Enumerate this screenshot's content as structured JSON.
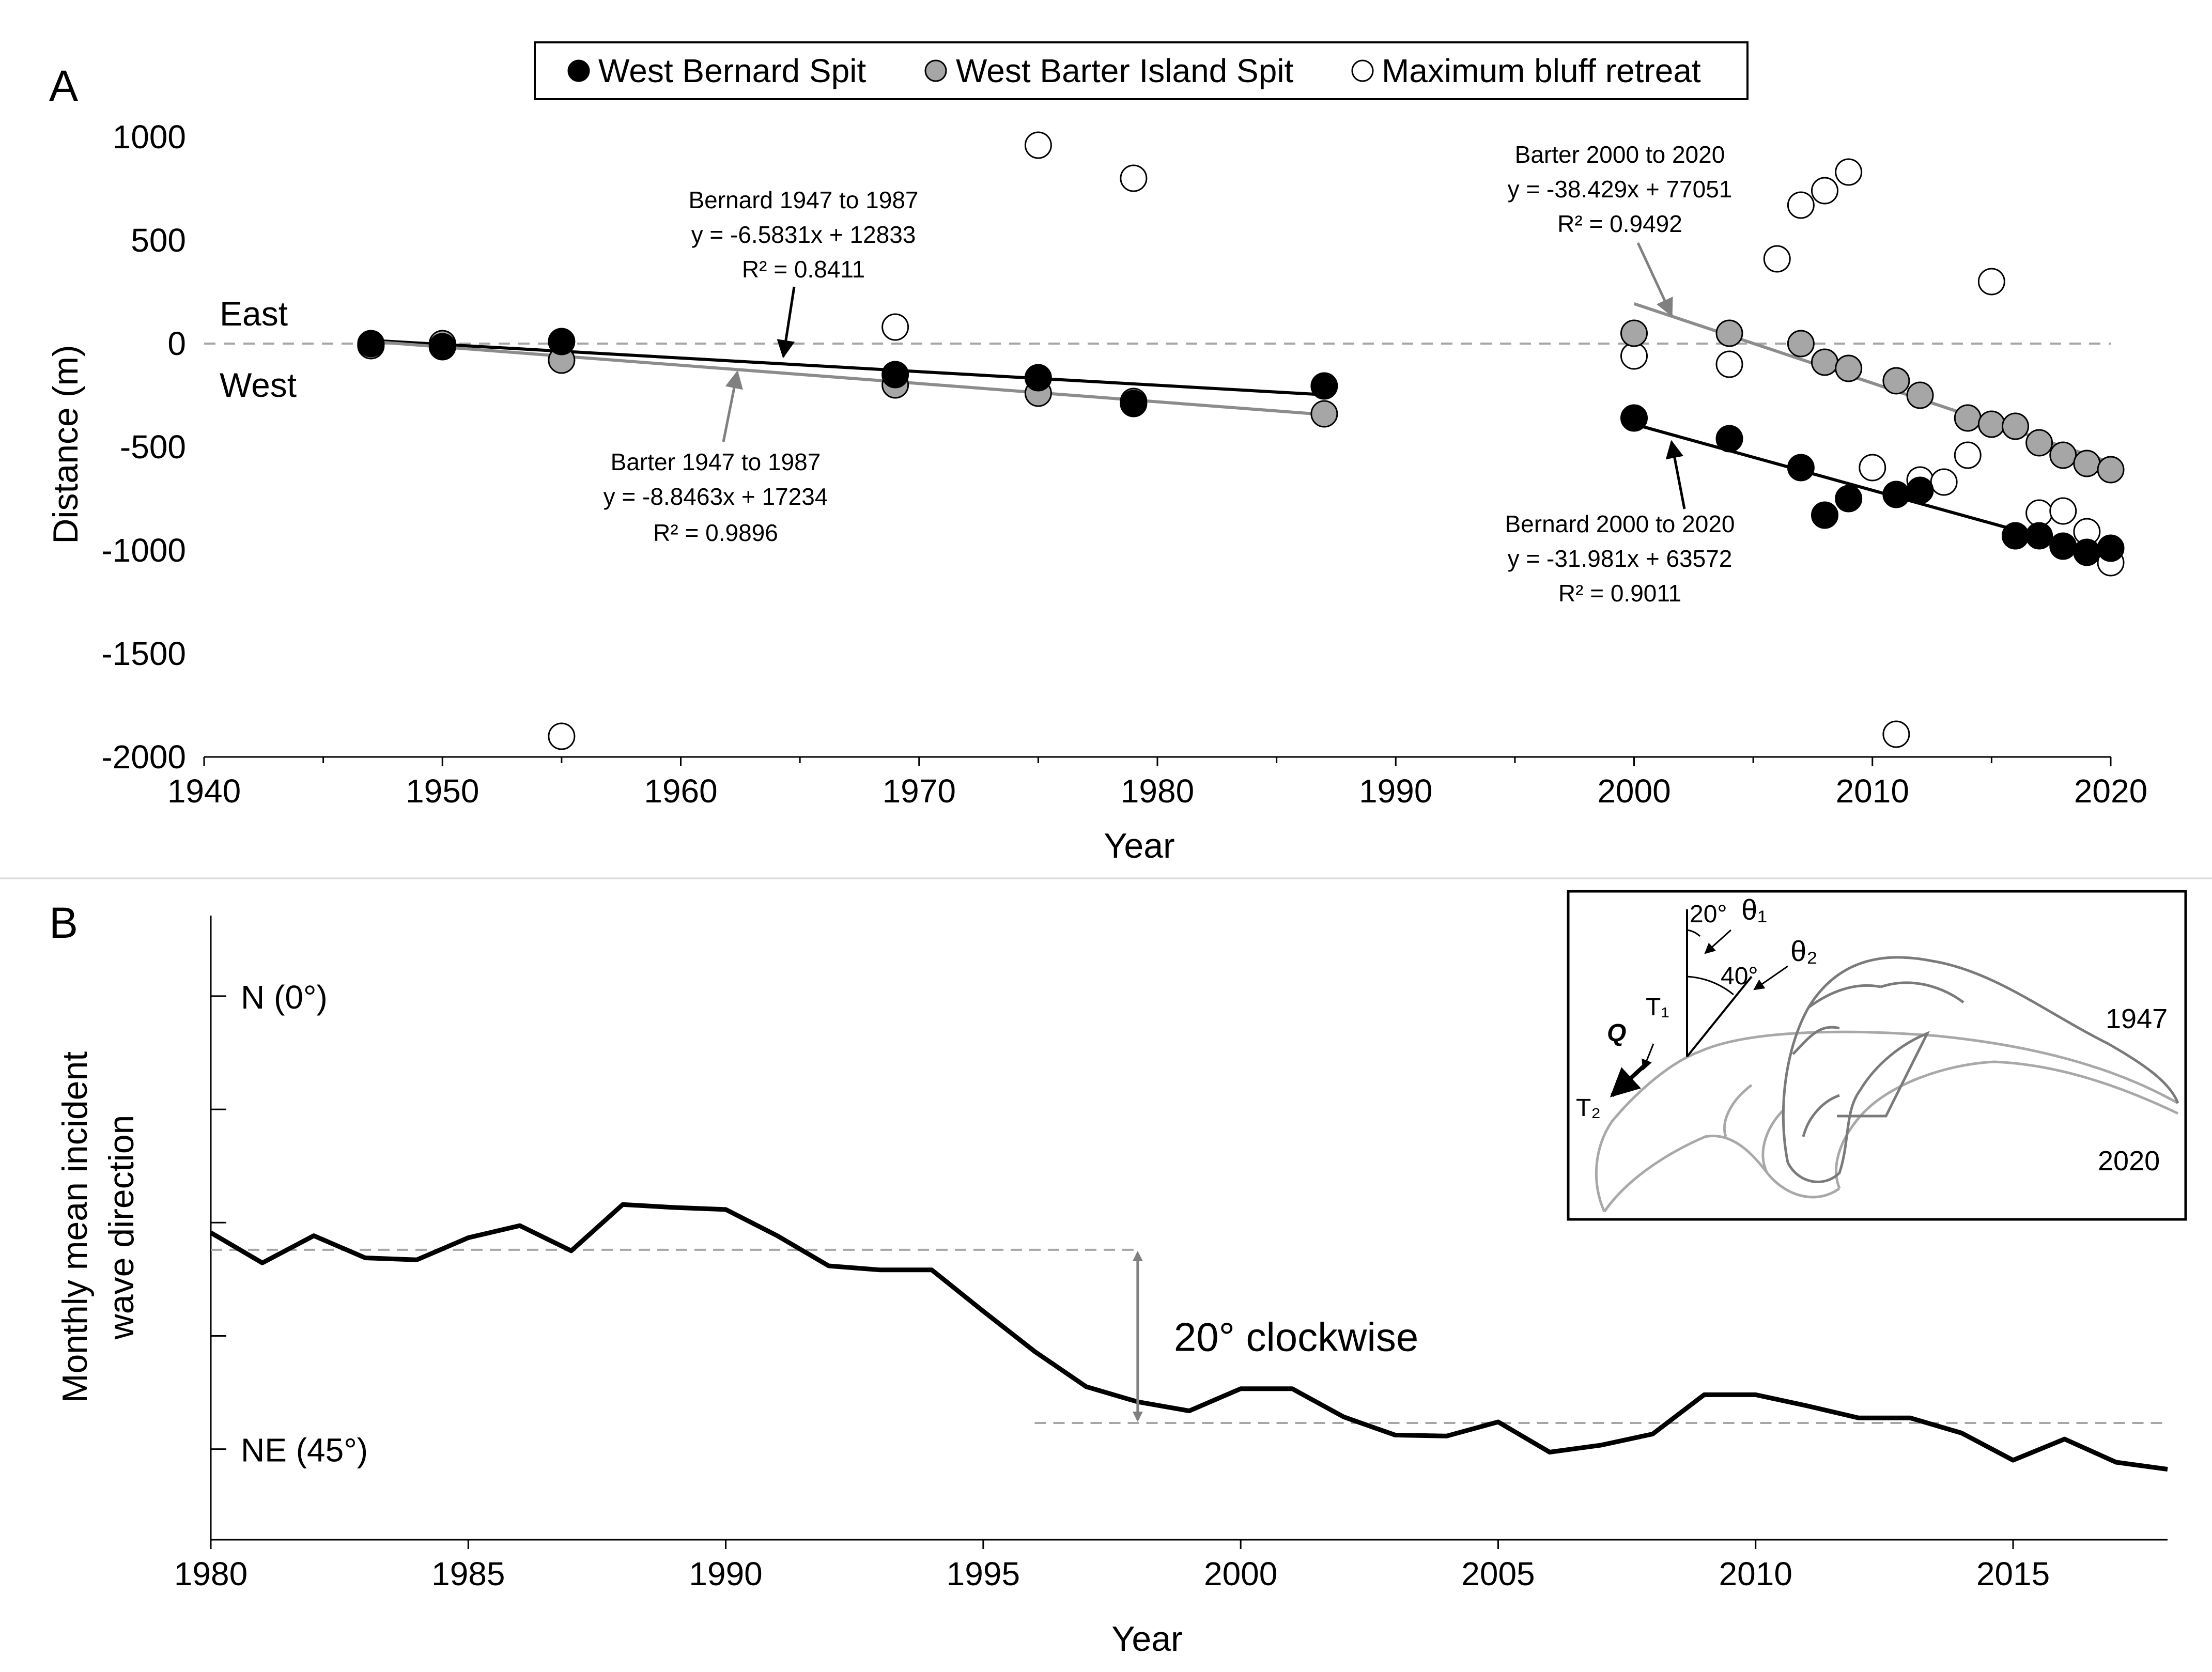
{
  "colors": {
    "bernard": "#000000",
    "barter": "#a6a6a6",
    "bluff": "#ffffff",
    "barter_line": "#8c8c8c",
    "dashed": "#a6a6a6",
    "arrow_grey": "#808080",
    "inset_1947": "#7a7a7a",
    "inset_2020": "#a8a8a8"
  },
  "chart_data": [
    {
      "panel": "A",
      "type": "scatter",
      "xlabel": "Year",
      "ylabel": "Distance (m)",
      "xlim": [
        1940,
        2020
      ],
      "ylim": [
        -2000,
        1000
      ],
      "xticks": [
        1940,
        1950,
        1960,
        1970,
        1980,
        1990,
        2000,
        2010,
        2020
      ],
      "yticks": [
        1000,
        500,
        0,
        -500,
        -1000,
        -1500,
        -2000
      ],
      "side_labels": {
        "east": "East",
        "west": "West"
      },
      "legend": [
        "West Bernard Spit",
        "West Barter Island Spit",
        "Maximum bluff retreat"
      ],
      "series": [
        {
          "name": "West Bernard Spit",
          "style": "black",
          "points": [
            [
              1947,
              0
            ],
            [
              1950,
              -15
            ],
            [
              1955,
              10
            ],
            [
              1969,
              -150
            ],
            [
              1975,
              -165
            ],
            [
              1979,
              -290
            ],
            [
              1987,
              -205
            ],
            [
              2000,
              -360
            ],
            [
              2004,
              -460
            ],
            [
              2007,
              -600
            ],
            [
              2008,
              -830
            ],
            [
              2009,
              -750
            ],
            [
              2011,
              -730
            ],
            [
              2012,
              -710
            ],
            [
              2016,
              -930
            ],
            [
              2017,
              -930
            ],
            [
              2018,
              -980
            ],
            [
              2019,
              -1010
            ],
            [
              2020,
              -990
            ]
          ]
        },
        {
          "name": "West Barter Island Spit",
          "style": "grey",
          "points": [
            [
              1947,
              -10
            ],
            [
              1950,
              0
            ],
            [
              1955,
              -80
            ],
            [
              1969,
              -200
            ],
            [
              1975,
              -240
            ],
            [
              1979,
              -280
            ],
            [
              1987,
              -340
            ],
            [
              2000,
              50
            ],
            [
              2004,
              50
            ],
            [
              2007,
              0
            ],
            [
              2008,
              -90
            ],
            [
              2009,
              -120
            ],
            [
              2011,
              -180
            ],
            [
              2012,
              -250
            ],
            [
              2014,
              -360
            ],
            [
              2015,
              -390
            ],
            [
              2016,
              -400
            ],
            [
              2017,
              -480
            ],
            [
              2018,
              -540
            ],
            [
              2019,
              -580
            ],
            [
              2020,
              -610
            ]
          ]
        },
        {
          "name": "Maximum bluff retreat",
          "style": "open",
          "points": [
            [
              1955,
              -1900
            ],
            [
              1969,
              80
            ],
            [
              1975,
              960
            ],
            [
              1979,
              800
            ],
            [
              2000,
              -60
            ],
            [
              2004,
              -100
            ],
            [
              2006,
              410
            ],
            [
              2007,
              670
            ],
            [
              2008,
              740
            ],
            [
              2009,
              830
            ],
            [
              2010,
              -600
            ],
            [
              2011,
              -1890
            ],
            [
              2012,
              -660
            ],
            [
              2013,
              -670
            ],
            [
              2014,
              -540
            ],
            [
              2015,
              300
            ],
            [
              2016,
              -930
            ],
            [
              2017,
              -820
            ],
            [
              2018,
              -810
            ],
            [
              2019,
              -910
            ],
            [
              2020,
              -1060
            ]
          ]
        }
      ],
      "trendlines": [
        {
          "name": "Bernard 1947 to 1987",
          "equation": "y = -6.5831x + 12833",
          "r2": "R² = 0.8411",
          "x_range": [
            1947,
            1987
          ],
          "slope": -6.5831,
          "intercept": 12833,
          "style": "black"
        },
        {
          "name": "Barter 1947 to 1987",
          "equation": "y = -8.8463x + 17234",
          "r2": "R² = 0.9896",
          "x_range": [
            1947,
            1987
          ],
          "slope": -8.8463,
          "intercept": 17234,
          "style": "grey"
        },
        {
          "name": "Barter 2000 to 2020",
          "equation": "y = -38.429x + 77051",
          "r2": "R² = 0.9492",
          "x_range": [
            2000,
            2020
          ],
          "slope": -38.429,
          "intercept": 77051,
          "style": "grey"
        },
        {
          "name": "Bernard 2000 to 2020",
          "equation": "y = -31.981x + 63572",
          "r2": "R² = 0.9011",
          "x_range": [
            2000,
            2020
          ],
          "slope": -31.981,
          "intercept": 63572,
          "style": "black"
        }
      ]
    },
    {
      "panel": "B",
      "type": "line",
      "xlabel": "Year",
      "ylabel": [
        "Monthly mean incident",
        "wave direction"
      ],
      "xlim": [
        1980,
        2018
      ],
      "ylim": [
        -8,
        54
      ],
      "xticks": [
        1980,
        1985,
        1990,
        1995,
        2000,
        2005,
        2010,
        2015
      ],
      "ytick_values": [
        0,
        11.25,
        22.5,
        33.75,
        45
      ],
      "ytick_labels": {
        "0": "N (0°)",
        "45": "NE (45°)"
      },
      "x": [
        1980,
        1981,
        1982,
        1983,
        1984,
        1985,
        1986,
        1987,
        1988,
        1989,
        1990,
        1991,
        1992,
        1993,
        1994,
        1995,
        1996,
        1997,
        1998,
        1999,
        2000,
        2001,
        2002,
        2003,
        2004,
        2005,
        2006,
        2007,
        2008,
        2009,
        2010,
        2011,
        2012,
        2013,
        2014,
        2015,
        2016,
        2017,
        2018
      ],
      "y": [
        23.5,
        26.5,
        23.8,
        26.0,
        26.2,
        24.0,
        22.8,
        25.3,
        20.7,
        21.0,
        21.2,
        23.8,
        26.8,
        27.2,
        27.2,
        31.3,
        35.3,
        38.8,
        40.3,
        41.2,
        39.0,
        39.0,
        41.8,
        43.6,
        43.7,
        42.3,
        45.3,
        44.6,
        43.5,
        39.6,
        39.6,
        40.7,
        41.9,
        41.9,
        43.4,
        46.1,
        44.0,
        46.3,
        47.0
      ],
      "reference_levels": [
        {
          "value": 25.2,
          "x_range": [
            1980,
            1998
          ]
        },
        {
          "value": 42.4,
          "x_range": [
            1996,
            2018
          ]
        }
      ],
      "annotation": "20° clockwise",
      "inset": {
        "angles": [
          "20°",
          "40°"
        ],
        "labels": [
          "θ₁",
          "θ₂",
          "T₁",
          "T₂",
          "Q"
        ],
        "years": [
          "1947",
          "2020"
        ]
      }
    }
  ]
}
